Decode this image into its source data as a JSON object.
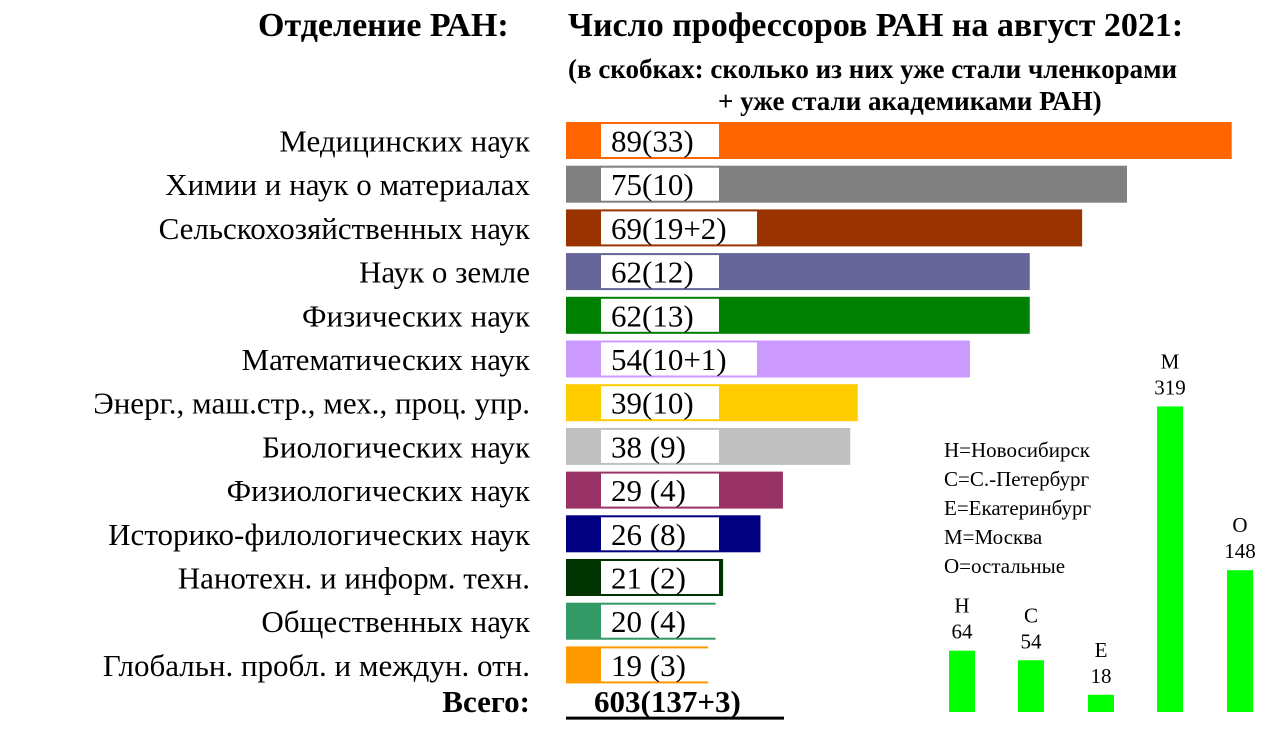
{
  "header": {
    "left_title": "Отделение РАН:",
    "right_title": "Число профессоров РАН на август 2021:",
    "subtitle_line1": "(в скобках: сколько из них уже стали членкорами",
    "subtitle_line2": "+ уже стали академиками РАН)"
  },
  "chart_data": [
    {
      "type": "bar",
      "orientation": "horizontal",
      "title": "Число профессоров РАН на август 2021:",
      "categories": [
        "Медицинских наук",
        "Химии и наук о материалах",
        "Сельскохозяйственных наук",
        "Наук о земле",
        "Физических наук",
        "Математических наук",
        "Энерг., маш.стр., мех., проц. упр.",
        "Биологических наук",
        "Физиологических наук",
        "Историко-филологических наук",
        "Нанотехн. и информ. техн.",
        "Общественных наук",
        "Глобальн. пробл. и междун. отн."
      ],
      "values": [
        89,
        75,
        69,
        62,
        62,
        54,
        39,
        38,
        29,
        26,
        21,
        20,
        19
      ],
      "labels": [
        "89(33)",
        "75(10)",
        "69(19+2)",
        "62(12)",
        "62(13)",
        "54(10+1)",
        "39(10)",
        "38  (9)",
        "29  (4)",
        "26  (8)",
        "21  (2)",
        "20  (4)",
        "19  (3)"
      ],
      "colors": [
        "#ff6600",
        "#808080",
        "#993300",
        "#666699",
        "#008000",
        "#cc99ff",
        "#ffcc00",
        "#c0c0c0",
        "#993366",
        "#000080",
        "#003300",
        "#339966",
        "#ff9900"
      ],
      "total_label": "Всего:",
      "total_value": "603(137+3)"
    },
    {
      "type": "bar",
      "orientation": "vertical",
      "categories": [
        "Н",
        "С",
        "Е",
        "М",
        "О"
      ],
      "values": [
        64,
        54,
        18,
        319,
        148
      ],
      "color": "#00ff00"
    }
  ],
  "legend": {
    "items": [
      "Н=Новосибирск",
      "С=С.-Петербург",
      "Е=Екатеринбург",
      "М=Москва",
      "О=остальные"
    ]
  }
}
